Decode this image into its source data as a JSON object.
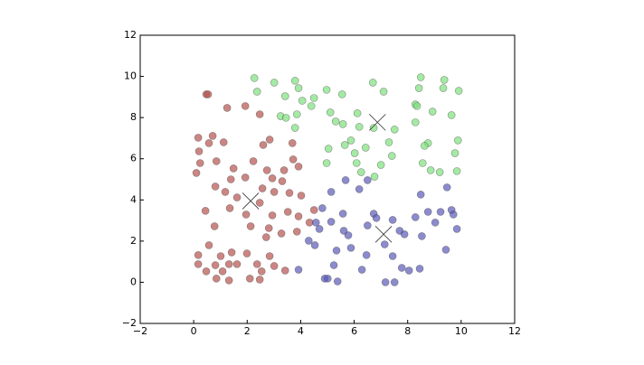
{
  "chart_data": {
    "type": "scatter",
    "xlim": [
      -2,
      12
    ],
    "ylim": [
      -2,
      12
    ],
    "xticks": [
      {
        "value": -2,
        "label": "−2"
      },
      0,
      2,
      4,
      6,
      8,
      10,
      12
    ],
    "yticks": [
      {
        "value": -2,
        "label": "−2"
      },
      0,
      2,
      4,
      6,
      8,
      10,
      12
    ],
    "series": [
      {
        "color": "#b5524e",
        "marker": "circle",
        "x": [
          0.47,
          0.54,
          1.25,
          1.93,
          2.47,
          0.17,
          0.71,
          0.57,
          1.12,
          0.2,
          2.6,
          2.84,
          3.69,
          0.85,
          0.24,
          1.49,
          2.23,
          3.72,
          3.92,
          0.1,
          1.39,
          1.93,
          2.74,
          3.38,
          2.94,
          3.31,
          0.81,
          1.18,
          1.62,
          2.57,
          3.01,
          3.58,
          4.02,
          0.44,
          1.35,
          1.96,
          2.47,
          2.94,
          3.52,
          3.92,
          4.5,
          0.78,
          2.13,
          2.81,
          2.71,
          3.28,
          3.86,
          4.33,
          0.57,
          0.17,
          1.01,
          1.42,
          1.99,
          2.84,
          0.17,
          0.81,
          1.32,
          1.62,
          2.37,
          3.01,
          3.42,
          0.47,
          1.08,
          2.54,
          0.85,
          1.32,
          2.1,
          2.47
        ],
        "values": [
          9.13,
          9.13,
          8.47,
          8.56,
          8.16,
          7.02,
          7.11,
          6.76,
          6.8,
          6.36,
          6.67,
          6.93,
          6.76,
          5.88,
          5.79,
          5.53,
          5.88,
          5.97,
          5.62,
          5.31,
          5.0,
          5.09,
          5.44,
          5.44,
          5.05,
          4.91,
          4.65,
          4.39,
          4.12,
          4.56,
          4.39,
          4.34,
          4.21,
          3.47,
          3.6,
          3.29,
          3.86,
          3.25,
          3.42,
          3.2,
          3.51,
          2.72,
          2.72,
          2.63,
          2.19,
          2.37,
          2.46,
          2.9,
          1.8,
          1.32,
          1.27,
          1.45,
          1.4,
          1.27,
          0.88,
          0.83,
          0.88,
          0.88,
          0.88,
          0.79,
          0.57,
          0.53,
          0.53,
          0.53,
          0.18,
          0.09,
          0.18,
          0.13
        ]
      },
      {
        "color": "#7ee07e",
        "marker": "circle",
        "x": [
          2.27,
          2.37,
          3.01,
          3.79,
          3.92,
          3.42,
          4.06,
          4.5,
          4.97,
          5.55,
          6.7,
          7.1,
          8.49,
          8.42,
          9.37,
          9.33,
          9.91,
          3.25,
          3.45,
          3.86,
          4.4,
          3.79,
          5.11,
          5.31,
          5.58,
          6.12,
          8.29,
          8.35,
          8.93,
          9.64,
          6.19,
          6.73,
          7.51,
          8.29,
          9.88,
          7.3,
          8.76,
          8.63,
          5.04,
          5.65,
          5.88,
          6.43,
          6.02,
          7.41,
          9.77,
          4.97,
          6.09,
          6.26,
          7.0,
          8.56,
          8.86,
          9.2,
          6.76,
          9.84
        ],
        "values": [
          9.92,
          9.26,
          9.7,
          9.79,
          9.43,
          9.04,
          8.82,
          8.95,
          9.35,
          9.13,
          9.7,
          9.26,
          9.96,
          9.43,
          9.83,
          9.43,
          9.3,
          8.07,
          7.99,
          8.16,
          8.56,
          7.5,
          8.25,
          7.81,
          7.68,
          8.21,
          8.64,
          8.56,
          8.29,
          8.12,
          7.55,
          7.5,
          7.42,
          7.77,
          6.89,
          6.8,
          6.76,
          6.63,
          6.49,
          6.67,
          6.89,
          6.54,
          6.27,
          6.14,
          6.27,
          5.79,
          5.79,
          5.35,
          5.7,
          5.79,
          5.44,
          5.35,
          5.13,
          5.4
        ]
      },
      {
        "color": "#5a5ab8",
        "marker": "circle",
        "x": [
          5.14,
          5.68,
          6.19,
          6.5,
          8.49,
          9.47,
          4.81,
          5.58,
          6.73,
          6.83,
          7.44,
          8.29,
          8.76,
          9.23,
          9.64,
          9.71,
          9.84,
          4.57,
          4.7,
          5.14,
          5.61,
          5.78,
          6.5,
          7.7,
          7.88,
          8.53,
          9.03,
          4.3,
          4.53,
          5.34,
          5.88,
          6.46,
          7.14,
          7.44,
          9.43,
          7.78,
          8.05,
          8.45,
          3.92,
          5.24,
          6.29,
          4.9,
          5.01,
          5.38,
          7.17,
          7.51
        ],
        "values": [
          4.39,
          4.96,
          4.52,
          4.96,
          4.26,
          4.61,
          3.6,
          3.33,
          3.33,
          3.12,
          3.03,
          3.16,
          3.42,
          3.42,
          3.51,
          3.29,
          2.59,
          2.9,
          2.59,
          2.94,
          2.5,
          2.28,
          2.76,
          2.5,
          2.33,
          2.24,
          2.9,
          2.02,
          1.8,
          1.54,
          1.67,
          1.32,
          1.84,
          1.27,
          1.58,
          0.7,
          0.57,
          0.66,
          0.61,
          0.83,
          0.61,
          0.18,
          0.18,
          0.04,
          0.0,
          0.0
        ]
      },
      {
        "color": "#333333",
        "marker": "x",
        "x": [
          2.13,
          6.87,
          7.1
        ],
        "values": [
          3.95,
          7.77,
          2.33
        ]
      }
    ]
  }
}
